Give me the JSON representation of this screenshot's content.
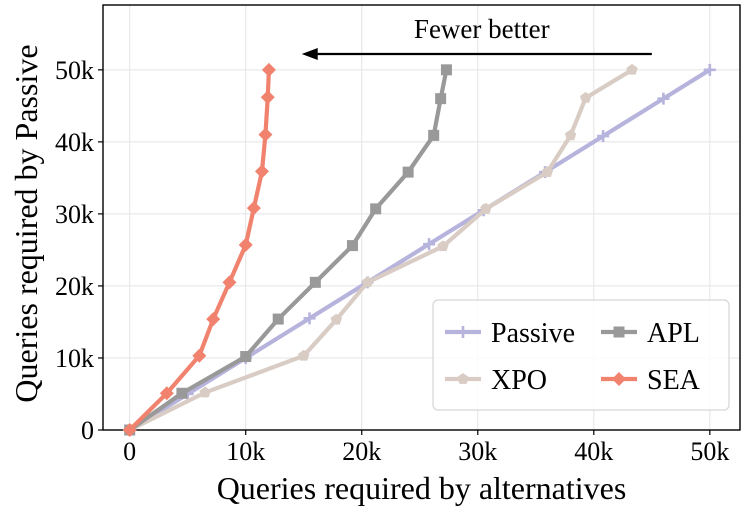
{
  "chart_data": {
    "type": "line",
    "xlabel": "Queries required by alternatives",
    "ylabel": "Queries required by Passive",
    "xlim": [
      -2300,
      52600
    ],
    "ylim": [
      0,
      59000
    ],
    "xticks": [
      0,
      10000,
      20000,
      30000,
      40000,
      50000
    ],
    "xtick_labels": [
      "0",
      "10k",
      "20k",
      "30k",
      "40k",
      "50k"
    ],
    "yticks": [
      0,
      10000,
      20000,
      30000,
      40000,
      50000
    ],
    "ytick_labels": [
      "0",
      "10k",
      "20k",
      "30k",
      "40k",
      "50k"
    ],
    "grid": true,
    "annotation": {
      "text": "Fewer better",
      "arrow_from": [
        45000,
        52200
      ],
      "arrow_to": [
        15000,
        52200
      ]
    },
    "legend": {
      "position": "lower-right",
      "columns": 2
    },
    "series": [
      {
        "name": "Passive",
        "color": "#b6b3dc",
        "marker": "plus",
        "x": [
          0,
          5000,
          10000,
          15500,
          20500,
          25800,
          30500,
          35800,
          40800,
          46000,
          50000
        ],
        "y": [
          0,
          5000,
          10000,
          15500,
          20500,
          25800,
          30500,
          35800,
          40800,
          46000,
          50000
        ]
      },
      {
        "name": "XPO",
        "color": "#d8ccc4",
        "marker": "pentagon",
        "x": [
          0,
          6500,
          15000,
          17800,
          20500,
          27000,
          30700,
          36000,
          38000,
          39300,
          43300
        ],
        "y": [
          0,
          5200,
          10300,
          15300,
          20500,
          25500,
          30700,
          35800,
          40900,
          46100,
          50000
        ]
      },
      {
        "name": "APL",
        "color": "#999999",
        "marker": "square",
        "x": [
          0,
          4500,
          10000,
          12800,
          16000,
          19200,
          21200,
          24000,
          26200,
          26800,
          27300
        ],
        "y": [
          0,
          5100,
          10200,
          15400,
          20500,
          25600,
          30700,
          35800,
          40900,
          46000,
          50000
        ]
      },
      {
        "name": "SEA",
        "color": "#f0826e",
        "marker": "diamond",
        "x": [
          0,
          3200,
          6000,
          7200,
          8600,
          10000,
          10700,
          11400,
          11700,
          11900,
          12000
        ],
        "y": [
          0,
          5100,
          10300,
          15400,
          20500,
          25700,
          30800,
          35900,
          41000,
          46200,
          50000
        ]
      }
    ]
  }
}
